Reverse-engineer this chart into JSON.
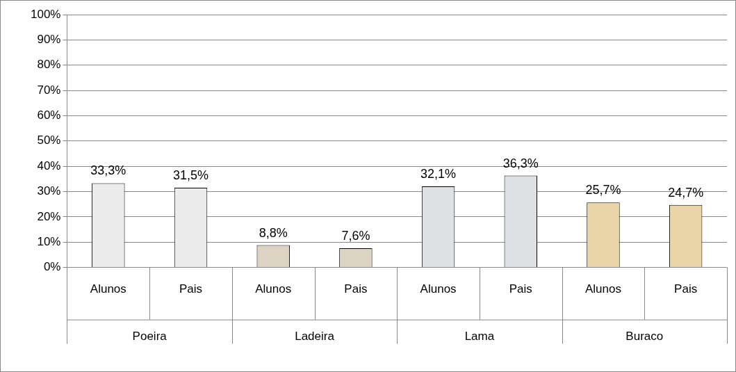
{
  "chart_data": {
    "type": "bar",
    "categories": [
      "Alunos",
      "Pais",
      "Alunos",
      "Pais",
      "Alunos",
      "Pais",
      "Alunos",
      "Pais"
    ],
    "values": [
      33.3,
      31.5,
      8.8,
      7.6,
      32.1,
      36.3,
      25.7,
      24.7
    ],
    "colors": [
      "#ececec",
      "#ececec",
      "#ddd3c2",
      "#ddd3c2",
      "#dfe0e3",
      "#dfe0e3",
      "#e9d5a8",
      "#e9d5a8"
    ],
    "value_labels": [
      "33,3%",
      "31,5%",
      "8,8%",
      "7,6%",
      "32,1%",
      "36,3%",
      "25,7%",
      "24,7%"
    ],
    "annotations": [
      "Poeira",
      "Ladeira",
      "Lama",
      "Buraco"
    ],
    "ylim": [
      0,
      100
    ],
    "yticks": [
      {
        "value": 0,
        "label": "0%"
      },
      {
        "value": 10,
        "label": "10%"
      },
      {
        "value": 20,
        "label": "20%"
      },
      {
        "value": 30,
        "label": "30%"
      },
      {
        "value": 40,
        "label": "40%"
      },
      {
        "value": 50,
        "label": "50%"
      },
      {
        "value": 60,
        "label": "60%"
      },
      {
        "value": 70,
        "label": "70%"
      },
      {
        "value": 80,
        "label": "80%"
      },
      {
        "value": 90,
        "label": "90%"
      },
      {
        "value": 100,
        "label": "100%"
      }
    ],
    "grid": "y",
    "legend": false
  }
}
